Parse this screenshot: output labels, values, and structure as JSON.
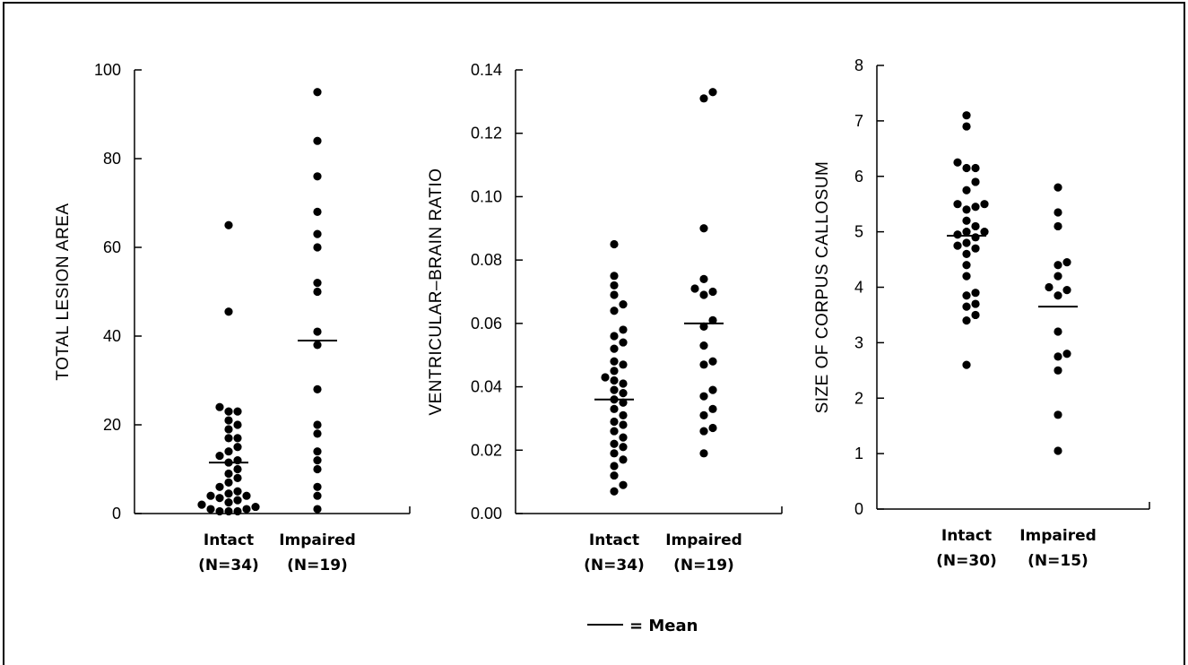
{
  "chart_data": [
    {
      "type": "scatter",
      "ylabel": "TOTAL LESION AREA",
      "ylim": [
        0,
        100
      ],
      "yticks": [
        0,
        20,
        40,
        60,
        80,
        100
      ],
      "ytick_labels": [
        "0",
        "20",
        "40",
        "60",
        "80",
        "100"
      ],
      "categories": [
        "Intact",
        "Impaired"
      ],
      "category_n": [
        "(N=34)",
        "(N=19)"
      ],
      "series": [
        {
          "values": [
            65,
            45.5,
            24,
            23,
            23,
            21,
            20,
            19,
            17,
            17,
            15,
            14,
            13,
            12,
            11.5,
            10,
            9,
            8,
            7,
            6,
            5,
            4.5,
            4,
            4,
            3.5,
            3,
            2.5,
            2,
            1.5,
            1,
            1,
            0.5,
            0.5,
            0.5
          ],
          "mean": 11.5
        },
        {
          "values": [
            95,
            84,
            76,
            68,
            63,
            60,
            52,
            50,
            41,
            38,
            28,
            20,
            18,
            14,
            12,
            10,
            6,
            4,
            1
          ],
          "mean": 39
        }
      ]
    },
    {
      "type": "scatter",
      "ylabel": "VENTRICULAR–BRAIN RATIO",
      "ylim": [
        0,
        0.14
      ],
      "yticks": [
        0,
        0.02,
        0.04,
        0.06,
        0.08,
        0.1,
        0.12,
        0.14
      ],
      "ytick_labels": [
        "0.00",
        "0.02",
        "0.04",
        "0.06",
        "0.08",
        "0.10",
        "0.12",
        "0.14"
      ],
      "categories": [
        "Intact",
        "Impaired"
      ],
      "category_n": [
        "(N=34)",
        "(N=19)"
      ],
      "series": [
        {
          "values": [
            0.085,
            0.075,
            0.072,
            0.069,
            0.066,
            0.064,
            0.058,
            0.056,
            0.054,
            0.052,
            0.048,
            0.047,
            0.045,
            0.043,
            0.042,
            0.041,
            0.039,
            0.038,
            0.036,
            0.035,
            0.033,
            0.031,
            0.029,
            0.028,
            0.026,
            0.024,
            0.022,
            0.021,
            0.019,
            0.017,
            0.015,
            0.012,
            0.009,
            0.007
          ],
          "mean": 0.036
        },
        {
          "values": [
            0.133,
            0.131,
            0.09,
            0.074,
            0.071,
            0.07,
            0.069,
            0.061,
            0.059,
            0.053,
            0.048,
            0.047,
            0.039,
            0.037,
            0.033,
            0.031,
            0.027,
            0.026,
            0.019
          ],
          "mean": 0.06
        }
      ]
    },
    {
      "type": "scatter",
      "ylabel": "SIZE OF CORPUS CALLOSUM",
      "ylim": [
        0,
        8
      ],
      "yticks": [
        0,
        1,
        2,
        3,
        4,
        5,
        6,
        7,
        8
      ],
      "ytick_labels": [
        "0",
        "1",
        "2",
        "3",
        "4",
        "5",
        "6",
        "7",
        "8"
      ],
      "categories": [
        "Intact",
        "Impaired"
      ],
      "category_n": [
        "(N=30)",
        "(N=15)"
      ],
      "series": [
        {
          "values": [
            7.1,
            6.9,
            6.25,
            6.15,
            6.15,
            5.9,
            5.75,
            5.5,
            5.5,
            5.45,
            5.4,
            5.2,
            5.1,
            5.0,
            5.0,
            4.95,
            4.9,
            4.8,
            4.75,
            4.7,
            4.6,
            4.4,
            4.2,
            3.9,
            3.85,
            3.7,
            3.65,
            3.5,
            3.4,
            2.6
          ],
          "mean": 4.93
        },
        {
          "values": [
            5.8,
            5.35,
            5.1,
            4.45,
            4.4,
            4.2,
            4.0,
            3.95,
            3.85,
            3.2,
            2.8,
            2.75,
            2.5,
            1.7,
            1.05
          ],
          "mean": 3.65
        }
      ]
    }
  ],
  "legend": {
    "text": "= Mean",
    "position": "bottom-center"
  }
}
